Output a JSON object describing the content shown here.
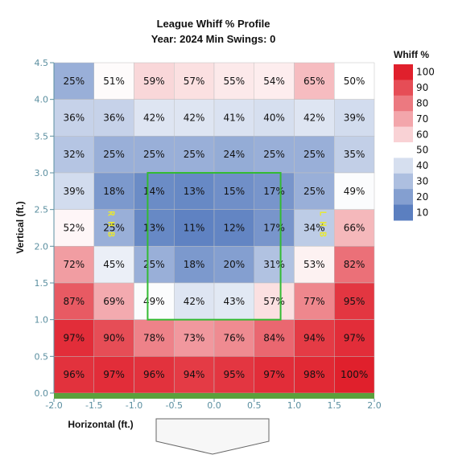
{
  "chart_data": {
    "type": "heatmap",
    "title": "League Whiff % Profile",
    "subtitle": "Year: 2024 Min Swings: 0",
    "xlabel": "Horizontal (ft.)",
    "ylabel": "Vertical (ft.)",
    "xlim": [
      -2.0,
      2.0
    ],
    "ylim": [
      0.0,
      4.5
    ],
    "x_ticks": [
      "-2.0",
      "-1.5",
      "-1.0",
      "-0.5",
      "0.0",
      "0.5",
      "1.0",
      "1.5",
      "2.0"
    ],
    "y_ticks": [
      "0.0",
      "0.5",
      "1.0",
      "1.5",
      "2.0",
      "2.5",
      "3.0",
      "3.5",
      "4.0",
      "4.5"
    ],
    "x_edges": [
      -2.0,
      -1.5,
      -1.0,
      -0.5,
      0.0,
      0.5,
      1.0,
      1.5,
      2.0
    ],
    "y_edges": [
      4.5,
      4.0,
      3.5,
      3.0,
      2.5,
      2.0,
      1.5,
      1.0,
      0.5,
      0.0
    ],
    "rows_top_to_bottom": [
      [
        25,
        51,
        59,
        57,
        55,
        54,
        65,
        50
      ],
      [
        36,
        36,
        42,
        42,
        41,
        40,
        42,
        39
      ],
      [
        32,
        25,
        25,
        25,
        24,
        25,
        25,
        35
      ],
      [
        39,
        18,
        14,
        13,
        15,
        17,
        25,
        49
      ],
      [
        52,
        25,
        13,
        11,
        12,
        17,
        34,
        66
      ],
      [
        72,
        45,
        25,
        18,
        20,
        31,
        53,
        82
      ],
      [
        87,
        69,
        49,
        42,
        43,
        57,
        77,
        95
      ],
      [
        97,
        90,
        78,
        73,
        76,
        84,
        94,
        97
      ],
      [
        96,
        97,
        96,
        94,
        95,
        97,
        98,
        100
      ]
    ],
    "value_suffix": "%",
    "strike_zone": {
      "x": [
        -0.83,
        0.83
      ],
      "y": [
        1.0,
        3.0
      ],
      "color": "#33bb33"
    },
    "batter_marks": [
      {
        "text": "RHB",
        "x": -1.25,
        "y": 2.25
      },
      {
        "text": "LHB",
        "x": 1.25,
        "y": 2.25
      }
    ],
    "legend": {
      "title": "Whiff %",
      "placement": "right",
      "ticks": [
        "100",
        "90",
        "80",
        "70",
        "60",
        "50",
        "40",
        "30",
        "20",
        "10"
      ]
    },
    "colors": {
      "low": "#5b7fc0",
      "mid": "#ffffff",
      "high": "#e0202c",
      "ground": "#5aa03c",
      "axis_text": "#5b8fa0",
      "grid": "#cccccc"
    }
  }
}
